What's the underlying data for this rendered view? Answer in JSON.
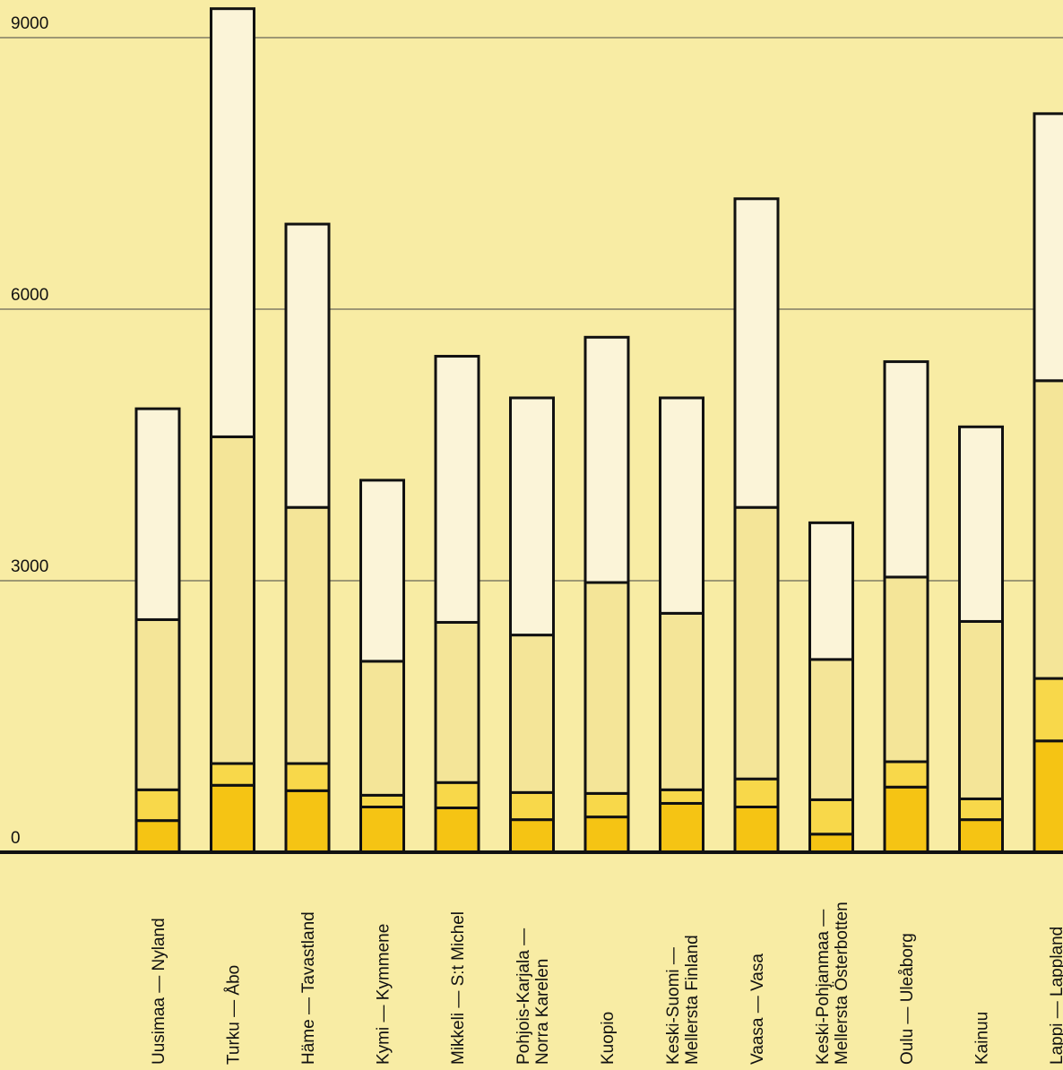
{
  "chart_data": {
    "type": "bar",
    "stacked": true,
    "title": "",
    "xlabel": "",
    "ylabel": "",
    "ylim": [
      0,
      9300
    ],
    "yticks": [
      0,
      3000,
      6000,
      9000
    ],
    "ytick_labels": [
      "0",
      "3000",
      "6000",
      "9000"
    ],
    "grid": true,
    "legend": "none",
    "categories": [
      [
        "Uusimaa — Nyland"
      ],
      [
        "Turku — Åbo"
      ],
      [
        "Häme — Tavastland"
      ],
      [
        "Kymi — Kymmene"
      ],
      [
        "Mikkeli — S:t Michel"
      ],
      [
        "Pohjois-Karjala —",
        "Norra Karelen"
      ],
      [
        "Kuopio"
      ],
      [
        "Keski-Suomi —",
        "Mellersta Finland"
      ],
      [
        "Vaasa — Vasa"
      ],
      [
        "Keski-Pohjanmaa —",
        "Mellersta Österbotten"
      ],
      [
        "Oulu — Uleåborg"
      ],
      [
        "Kainuu"
      ],
      [
        "Lappi — Lappland"
      ]
    ],
    "series": [
      {
        "color": "#f5c414",
        "values": [
          350,
          740,
          680,
          500,
          490,
          360,
          390,
          540,
          500,
          200,
          720,
          360,
          1230
        ]
      },
      {
        "color": "#f8d84a",
        "values": [
          340,
          240,
          300,
          130,
          280,
          300,
          260,
          150,
          310,
          380,
          280,
          230,
          690
        ]
      },
      {
        "color": "#f4e598",
        "values": [
          1880,
          3610,
          2830,
          1480,
          1770,
          1740,
          2330,
          1950,
          3000,
          1550,
          2040,
          1960,
          3290
        ]
      },
      {
        "color": "#fbf4d8",
        "values": [
          2330,
          4730,
          3130,
          2000,
          2940,
          2620,
          2710,
          2380,
          3410,
          1510,
          2380,
          2150,
          2950
        ]
      }
    ]
  }
}
